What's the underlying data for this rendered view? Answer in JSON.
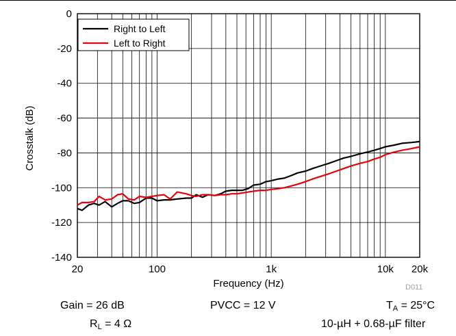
{
  "chart_data": {
    "type": "line",
    "xlabel": "Frequency (Hz)",
    "ylabel": "Crosstalk (dB)",
    "xscale": "log",
    "xlim": [
      20,
      20000
    ],
    "ylim": [
      -140,
      0
    ],
    "x_ticks": [
      {
        "value": 20,
        "label": "20"
      },
      {
        "value": 100,
        "label": "100"
      },
      {
        "value": 1000,
        "label": "1k"
      },
      {
        "value": 10000,
        "label": "10k"
      },
      {
        "value": 20000,
        "label": "20k"
      }
    ],
    "y_ticks": [
      {
        "value": 0,
        "label": "0"
      },
      {
        "value": -20,
        "label": "-20"
      },
      {
        "value": -40,
        "label": "-40"
      },
      {
        "value": -60,
        "label": "-60"
      },
      {
        "value": -80,
        "label": "-80"
      },
      {
        "value": -100,
        "label": "-100"
      },
      {
        "value": -120,
        "label": "-120"
      },
      {
        "value": -140,
        "label": "-140"
      }
    ],
    "grid": true,
    "legend_position": "top-left",
    "series": [
      {
        "name": "Right to Left",
        "color": "#000000",
        "points": [
          [
            20,
            -112
          ],
          [
            22,
            -113
          ],
          [
            25,
            -110
          ],
          [
            28,
            -109
          ],
          [
            31,
            -110
          ],
          [
            35,
            -108
          ],
          [
            40,
            -111
          ],
          [
            45,
            -109
          ],
          [
            50,
            -107.5
          ],
          [
            56,
            -107.5
          ],
          [
            63,
            -109
          ],
          [
            70,
            -108.5
          ],
          [
            80,
            -106
          ],
          [
            90,
            -106
          ],
          [
            100,
            -107.5
          ],
          [
            115,
            -107
          ],
          [
            130,
            -107
          ],
          [
            150,
            -106.5
          ],
          [
            180,
            -106
          ],
          [
            200,
            -106
          ],
          [
            220,
            -104
          ],
          [
            250,
            -105.5
          ],
          [
            280,
            -104
          ],
          [
            320,
            -104.5
          ],
          [
            360,
            -103.5
          ],
          [
            400,
            -102
          ],
          [
            450,
            -101.5
          ],
          [
            500,
            -101.5
          ],
          [
            560,
            -101.5
          ],
          [
            630,
            -100.5
          ],
          [
            700,
            -98.5
          ],
          [
            800,
            -98
          ],
          [
            900,
            -96.5
          ],
          [
            1000,
            -96
          ],
          [
            1150,
            -95
          ],
          [
            1300,
            -94.5
          ],
          [
            1500,
            -93
          ],
          [
            1700,
            -91.5
          ],
          [
            2000,
            -90.5
          ],
          [
            2300,
            -89
          ],
          [
            2700,
            -87.5
          ],
          [
            3200,
            -86
          ],
          [
            3700,
            -84.5
          ],
          [
            4300,
            -83
          ],
          [
            5000,
            -82
          ],
          [
            6000,
            -80.5
          ],
          [
            7000,
            -79.5
          ],
          [
            8000,
            -78.5
          ],
          [
            9000,
            -77.5
          ],
          [
            10000,
            -76.5
          ],
          [
            12000,
            -75.5
          ],
          [
            14000,
            -74.5
          ],
          [
            17000,
            -74
          ],
          [
            20000,
            -73.5
          ]
        ]
      },
      {
        "name": "Left to Right",
        "color": "#e8000b",
        "points": [
          [
            20,
            -110
          ],
          [
            22,
            -108.5
          ],
          [
            25,
            -108.5
          ],
          [
            28,
            -108
          ],
          [
            31,
            -105
          ],
          [
            35,
            -107
          ],
          [
            40,
            -106.5
          ],
          [
            45,
            -104
          ],
          [
            50,
            -103.5
          ],
          [
            56,
            -106.5
          ],
          [
            63,
            -107
          ],
          [
            70,
            -105
          ],
          [
            80,
            -105.5
          ],
          [
            90,
            -105
          ],
          [
            100,
            -104.5
          ],
          [
            115,
            -104
          ],
          [
            130,
            -106.5
          ],
          [
            150,
            -102.5
          ],
          [
            180,
            -103.5
          ],
          [
            200,
            -104.5
          ],
          [
            220,
            -105
          ],
          [
            250,
            -104
          ],
          [
            280,
            -104
          ],
          [
            320,
            -104.5
          ],
          [
            360,
            -104
          ],
          [
            400,
            -104
          ],
          [
            450,
            -103.5
          ],
          [
            500,
            -103.5
          ],
          [
            560,
            -103
          ],
          [
            630,
            -102.5
          ],
          [
            700,
            -102
          ],
          [
            800,
            -101.5
          ],
          [
            900,
            -101.5
          ],
          [
            1000,
            -101
          ],
          [
            1150,
            -100.5
          ],
          [
            1300,
            -100
          ],
          [
            1500,
            -99
          ],
          [
            1700,
            -98
          ],
          [
            2000,
            -96.5
          ],
          [
            2300,
            -95
          ],
          [
            2700,
            -93.5
          ],
          [
            3200,
            -92
          ],
          [
            3700,
            -90.5
          ],
          [
            4300,
            -89
          ],
          [
            5000,
            -87.5
          ],
          [
            6000,
            -86
          ],
          [
            7000,
            -85
          ],
          [
            8000,
            -83.5
          ],
          [
            9000,
            -82.5
          ],
          [
            10000,
            -81
          ],
          [
            12000,
            -79.5
          ],
          [
            14000,
            -78.5
          ],
          [
            17000,
            -77.5
          ],
          [
            20000,
            -76.5
          ]
        ]
      }
    ]
  },
  "conditions": {
    "gain": "Gain = 26 dB",
    "pvcc": "PVCC = 12 V",
    "ta_prefix": "T",
    "ta_sub": "A",
    "ta_value": " = 25°C",
    "rl_prefix": "R",
    "rl_sub": "L",
    "rl_value": " = 4 Ω",
    "filter": "10-µH + 0.68-µF filter"
  },
  "figure_tag": "D011"
}
